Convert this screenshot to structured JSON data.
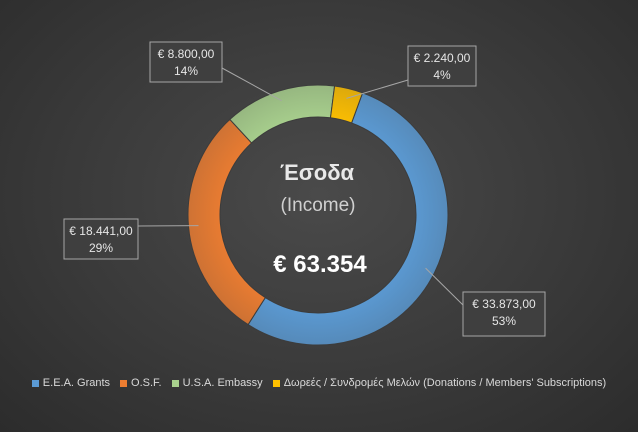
{
  "chart_data": {
    "type": "pie",
    "donut": true,
    "center": {
      "title": "Έσοδα",
      "subtitle": "(Income)",
      "total": "€ 63.354"
    },
    "series": [
      {
        "name": "E.E.A. Grants",
        "value": 33873,
        "label": "€ 33.873,00",
        "percent": "53%",
        "color": "#5b9bd5"
      },
      {
        "name": "O.S.F.",
        "value": 18441,
        "label": "€ 18.441,00",
        "percent": "29%",
        "color": "#ed7d31"
      },
      {
        "name": "U.S.A. Embassy",
        "value": 8800,
        "label": "€ 8.800,00",
        "percent": "14%",
        "color": "#a9d18e"
      },
      {
        "name": "Δωρεές / Συνδρομές Μελών (Donations / Members' Subscriptions)",
        "value": 2240,
        "label": "€ 2.240,00",
        "percent": "4%",
        "color": "#ffc000"
      }
    ],
    "legend_position": "bottom"
  }
}
